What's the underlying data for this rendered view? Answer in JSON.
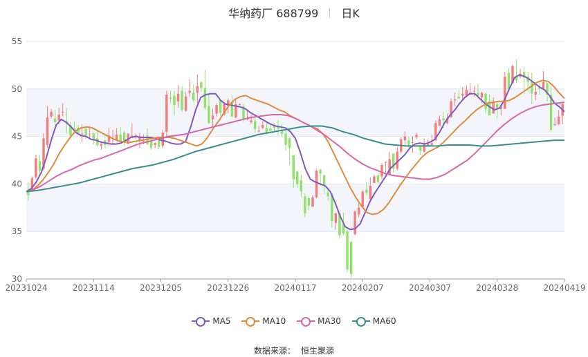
{
  "header": {
    "name": "华纳药厂 688799",
    "period": "日K"
  },
  "source": {
    "label": "数据来源：",
    "value": "恒生聚源"
  },
  "chart_data": {
    "type": "candlestick",
    "x_tick_labels": [
      "20231024",
      "20231114",
      "20231205",
      "20231226",
      "20240117",
      "20240207",
      "20240307",
      "20240328",
      "20240419"
    ],
    "ylim": [
      30,
      55
    ],
    "y_ticks": [
      30,
      35,
      40,
      45,
      50,
      55
    ],
    "grid": true,
    "legend_position": "bottom",
    "colors": {
      "up": "#f47c7c",
      "down": "#8fe36b",
      "MA5": "#7e57c2",
      "MA10": "#e08a3c",
      "MA30": "#d966a6",
      "MA60": "#3a8c8c"
    },
    "candles": [
      [
        39.3,
        38.8,
        40.2,
        38.2
      ],
      [
        39.4,
        40.6,
        40.8,
        39.2
      ],
      [
        40.7,
        42.7,
        43.1,
        40.5
      ],
      [
        42.4,
        41.4,
        43.0,
        40.8
      ],
      [
        41.6,
        44.8,
        45.3,
        41.4
      ],
      [
        44.1,
        47.0,
        48.2,
        43.8
      ],
      [
        47.1,
        47.6,
        47.9,
        46.9
      ],
      [
        46.9,
        46.5,
        47.8,
        46.2
      ],
      [
        46.7,
        47.3,
        48.0,
        46.3
      ],
      [
        47.6,
        47.6,
        48.5,
        47.1
      ],
      [
        46.6,
        46.4,
        48.0,
        45.3
      ],
      [
        46.2,
        45.1,
        46.5,
        44.9
      ],
      [
        45.9,
        45.6,
        46.6,
        45.3
      ],
      [
        45.9,
        45.4,
        46.2,
        45.2
      ],
      [
        45.3,
        45.3,
        46.3,
        44.4
      ],
      [
        45.8,
        45.1,
        45.9,
        44.7
      ],
      [
        45.2,
        45.2,
        46.1,
        44.7
      ],
      [
        45.3,
        44.6,
        45.4,
        44.2
      ],
      [
        44.8,
        44.1,
        45.6,
        43.9
      ],
      [
        44.0,
        44.2,
        44.5,
        43.6
      ],
      [
        44.6,
        44.1,
        45.3,
        43.8
      ],
      [
        44.4,
        45.1,
        45.9,
        44.0
      ],
      [
        44.2,
        44.3,
        45.7,
        44.3
      ],
      [
        44.6,
        45.2,
        45.9,
        44.5
      ],
      [
        45.2,
        44.5,
        46.0,
        44.4
      ],
      [
        45.4,
        44.4,
        45.6,
        44.0
      ],
      [
        44.2,
        45.3,
        45.3,
        44.2
      ],
      [
        45.0,
        45.1,
        46.4,
        45.0
      ],
      [
        45.0,
        45.1,
        45.3,
        44.7
      ],
      [
        44.5,
        44.9,
        45.4,
        43.8
      ],
      [
        44.5,
        44.5,
        45.2,
        44.2
      ],
      [
        45.1,
        44.2,
        45.9,
        44.1
      ],
      [
        44.6,
        43.8,
        44.7,
        43.6
      ],
      [
        44.1,
        44.3,
        44.4,
        43.8
      ],
      [
        44.6,
        43.9,
        44.6,
        43.7
      ],
      [
        44.0,
        45.4,
        45.7,
        43.8
      ],
      [
        45.5,
        49.4,
        49.8,
        44.9
      ],
      [
        49.1,
        49.0,
        49.8,
        48.5
      ],
      [
        49.3,
        48.3,
        49.8,
        47.2
      ],
      [
        48.7,
        49.5,
        50.4,
        48.0
      ],
      [
        49.8,
        47.8,
        50.3,
        47.6
      ],
      [
        47.7,
        49.2,
        49.7,
        47.6
      ],
      [
        49.6,
        49.8,
        51.0,
        49.2
      ],
      [
        49.6,
        48.8,
        50.5,
        48.6
      ],
      [
        49.6,
        50.3,
        51.5,
        48.5
      ],
      [
        50.7,
        50.1,
        50.8,
        49.7
      ],
      [
        50.1,
        48.0,
        52.0,
        47.8
      ],
      [
        48.2,
        46.4,
        49.6,
        46.3
      ],
      [
        46.8,
        47.2,
        47.9,
        46.0
      ],
      [
        47.4,
        48.3,
        48.5,
        47.1
      ],
      [
        48.8,
        47.5,
        48.9,
        47.2
      ],
      [
        47.3,
        48.4,
        48.5,
        47.2
      ],
      [
        48.2,
        48.8,
        49.0,
        47.4
      ],
      [
        48.6,
        47.1,
        49.3,
        47.1
      ],
      [
        47.0,
        48.4,
        48.9,
        46.9
      ],
      [
        48.3,
        48.4,
        48.5,
        48.3
      ],
      [
        48.2,
        46.8,
        48.4,
        46.5
      ],
      [
        46.8,
        46.9,
        47.7,
        46.7
      ],
      [
        46.5,
        46.7,
        47.3,
        46.3
      ],
      [
        46.6,
        45.8,
        47.0,
        45.4
      ],
      [
        45.6,
        45.6,
        46.1,
        45.4
      ],
      [
        45.9,
        46.2,
        46.6,
        45.8
      ],
      [
        45.9,
        45.3,
        46.5,
        45.2
      ],
      [
        45.8,
        45.6,
        46.2,
        45.5
      ],
      [
        46.1,
        45.9,
        46.4,
        45.6
      ],
      [
        46.0,
        45.8,
        46.7,
        45.1
      ],
      [
        45.7,
        45.3,
        46.3,
        45.0
      ],
      [
        45.3,
        44.1,
        45.5,
        43.5
      ],
      [
        44.8,
        43.8,
        44.9,
        42.0
      ],
      [
        43.0,
        40.5,
        43.1,
        39.6
      ],
      [
        41.3,
        40.0,
        41.4,
        39.6
      ],
      [
        40.4,
        39.2,
        41.0,
        38.6
      ],
      [
        38.7,
        36.9,
        39.0,
        36.5
      ],
      [
        38.5,
        37.7,
        38.6,
        37.2
      ],
      [
        37.6,
        38.6,
        38.8,
        37.6
      ],
      [
        38.6,
        41.4,
        41.6,
        38.5
      ],
      [
        41.5,
        41.1,
        41.6,
        39.8
      ],
      [
        40.9,
        39.9,
        41.0,
        38.9
      ],
      [
        39.1,
        38.7,
        39.4,
        38.2
      ],
      [
        39.0,
        36.1,
        39.0,
        35.4
      ],
      [
        35.9,
        36.9,
        37.0,
        35.2
      ],
      [
        36.9,
        34.6,
        36.9,
        34.3
      ],
      [
        35.8,
        34.8,
        37.0,
        34.6
      ],
      [
        35.0,
        31.0,
        35.1,
        30.7
      ],
      [
        33.9,
        30.5,
        34.0,
        30.1
      ],
      [
        34.7,
        37.1,
        37.2,
        34.6
      ],
      [
        36.8,
        37.5,
        38.1,
        36.5
      ],
      [
        37.6,
        39.2,
        39.3,
        37.4
      ],
      [
        39.4,
        39.1,
        40.2,
        38.8
      ],
      [
        38.4,
        39.8,
        40.7,
        38.3
      ],
      [
        40.1,
        40.8,
        41.0,
        40.1
      ],
      [
        40.9,
        40.2,
        41.1,
        40.0
      ],
      [
        40.8,
        42.0,
        42.2,
        40.5
      ],
      [
        42.3,
        42.3,
        42.4,
        41.1
      ],
      [
        41.0,
        42.6,
        43.4,
        40.9
      ],
      [
        43.2,
        41.6,
        43.2,
        41.2
      ],
      [
        41.6,
        43.4,
        43.9,
        41.4
      ],
      [
        43.4,
        44.7,
        44.9,
        43.2
      ],
      [
        44.6,
        45.0,
        45.5,
        43.9
      ],
      [
        44.6,
        44.1,
        45.0,
        43.8
      ],
      [
        44.4,
        44.4,
        45.0,
        43.3
      ],
      [
        44.9,
        45.2,
        45.4,
        44.7
      ],
      [
        44.0,
        43.5,
        44.1,
        43.1
      ],
      [
        43.4,
        44.3,
        44.8,
        43.3
      ],
      [
        44.0,
        44.2,
        44.7,
        44.0
      ],
      [
        44.1,
        44.3,
        45.2,
        44.1
      ],
      [
        44.6,
        46.4,
        46.7,
        44.5
      ],
      [
        46.1,
        46.8,
        47.2,
        46.1
      ],
      [
        46.9,
        46.7,
        47.6,
        45.9
      ],
      [
        46.4,
        46.9,
        47.4,
        46.3
      ],
      [
        47.0,
        48.7,
        49.0,
        47.0
      ],
      [
        48.8,
        48.9,
        49.6,
        48.2
      ],
      [
        49.2,
        49.0,
        49.9,
        49.0
      ],
      [
        49.3,
        49.5,
        50.2,
        48.9
      ],
      [
        49.3,
        49.9,
        50.4,
        49.2
      ],
      [
        49.4,
        49.6,
        50.6,
        49.4
      ],
      [
        49.8,
        49.8,
        50.3,
        49.2
      ],
      [
        49.6,
        49.3,
        50.5,
        49.0
      ],
      [
        49.1,
        49.6,
        49.7,
        48.5
      ],
      [
        49.5,
        47.9,
        49.6,
        47.4
      ],
      [
        48.7,
        47.2,
        49.4,
        47.2
      ],
      [
        47.4,
        48.6,
        49.1,
        47.4
      ],
      [
        48.4,
        48.0,
        48.7,
        46.9
      ],
      [
        47.9,
        48.1,
        48.2,
        47.2
      ],
      [
        47.9,
        51.3,
        51.8,
        47.9
      ],
      [
        51.7,
        50.0,
        52.2,
        49.9
      ],
      [
        50.6,
        52.4,
        52.6,
        50.6
      ],
      [
        51.4,
        50.9,
        53.1,
        50.6
      ],
      [
        51.3,
        51.6,
        52.1,
        51.1
      ],
      [
        51.8,
        51.2,
        52.3,
        49.5
      ],
      [
        51.3,
        50.7,
        51.8,
        49.7
      ],
      [
        50.8,
        49.5,
        51.7,
        48.4
      ],
      [
        49.4,
        49.7,
        50.7,
        48.8
      ],
      [
        50.2,
        50.0,
        50.7,
        49.4
      ],
      [
        50.0,
        50.7,
        51.9,
        50.0
      ],
      [
        50.6,
        49.4,
        50.8,
        48.7
      ],
      [
        49.4,
        45.7,
        50.3,
        45.5
      ],
      [
        46.2,
        46.3,
        47.0,
        46.1
      ],
      [
        46.3,
        47.1,
        47.8,
        46.2
      ],
      [
        47.2,
        48.4,
        48.6,
        46.3
      ]
    ],
    "series": [
      {
        "name": "MA5",
        "values": [
          39.2,
          39.5,
          40.2,
          41.2,
          42.7,
          44.6,
          46.2,
          46.8,
          46.5,
          46.0,
          45.4,
          45.1,
          45.0,
          44.7,
          44.6,
          44.4,
          44.3,
          44.2,
          44.2,
          44.3,
          44.6,
          44.9,
          45.0,
          44.9,
          44.9,
          44.9,
          44.8,
          44.6,
          44.5,
          44.3,
          44.2,
          44.2,
          44.5,
          46.0,
          47.8,
          49.1,
          49.4,
          49.5,
          49.5,
          48.8,
          48.4,
          48.3,
          48.2,
          48.1,
          47.9,
          47.5,
          47.2,
          46.9,
          46.6,
          46.3,
          46.1,
          46.0,
          45.9,
          45.5,
          44.8,
          43.3,
          41.6,
          40.5,
          40.2,
          40.0,
          39.8,
          39.2,
          38.0,
          36.6,
          35.5,
          35.2,
          35.3,
          35.8,
          37.0,
          38.2,
          39.1,
          39.9,
          40.7,
          41.6,
          42.1,
          42.6,
          43.1,
          43.8,
          44.2,
          44.3,
          44.2,
          44.4,
          44.7,
          45.5,
          46.5,
          47.2,
          47.8,
          48.5,
          49.1,
          49.5,
          49.5,
          49.0,
          48.5,
          48.1,
          47.8,
          48.0,
          48.9,
          50.1,
          51.2,
          51.5,
          51.3,
          51.0,
          50.6,
          50.2,
          49.9,
          49.3,
          48.5,
          48.1,
          47.6
        ]
      },
      {
        "name": "MA10",
        "values": [
          39.2,
          39.3,
          39.8,
          40.4,
          41.2,
          42.1,
          43.2,
          44.1,
          44.9,
          45.6,
          45.9,
          46.0,
          45.9,
          45.6,
          45.3,
          45.0,
          44.7,
          44.5,
          44.4,
          44.4,
          44.5,
          44.6,
          44.7,
          44.8,
          44.9,
          44.9,
          44.9,
          44.8,
          44.6,
          44.4,
          44.2,
          44.0,
          44.2,
          44.9,
          45.8,
          46.6,
          47.5,
          48.3,
          48.9,
          49.2,
          49.3,
          49.0,
          48.8,
          48.6,
          48.4,
          48.1,
          47.8,
          47.6,
          47.2,
          46.9,
          46.6,
          46.3,
          46.0,
          45.8,
          45.3,
          44.4,
          43.2,
          42.0,
          40.8,
          39.6,
          38.6,
          37.7,
          37.0,
          36.8,
          36.9,
          37.3,
          38.0,
          38.9,
          39.8,
          40.6,
          41.4,
          42.1,
          42.8,
          43.3,
          43.6,
          43.9,
          44.4,
          45.0,
          45.6,
          46.2,
          46.7,
          47.3,
          47.8,
          48.2,
          48.5,
          48.6,
          48.7,
          48.7,
          48.8,
          49.1,
          49.5,
          49.9,
          50.3,
          50.7,
          50.9,
          50.8,
          50.3,
          49.6,
          49.0
        ]
      },
      {
        "name": "MA30",
        "values": [
          39.2,
          39.4,
          39.8,
          40.3,
          40.8,
          41.2,
          41.5,
          41.9,
          42.2,
          42.5,
          42.7,
          43.0,
          43.3,
          43.6,
          43.9,
          44.2,
          44.4,
          44.6,
          44.8,
          45.0,
          45.1,
          45.2,
          45.4,
          45.6,
          45.8,
          46.0,
          46.2,
          46.4,
          46.6,
          46.8,
          47.0,
          47.1,
          47.2,
          47.3,
          47.3,
          47.2,
          46.9,
          46.5,
          46.1,
          45.6,
          45.1,
          44.5,
          43.9,
          43.2,
          42.6,
          42.1,
          41.7,
          41.4,
          41.1,
          40.9,
          40.8,
          40.7,
          40.6,
          40.5,
          40.5,
          40.7,
          41.0,
          41.5,
          42.0,
          42.5,
          43.2,
          44.0,
          44.8,
          45.6,
          46.3,
          46.9,
          47.4,
          47.8,
          48.1,
          48.3,
          48.4,
          48.5,
          48.6
        ]
      },
      {
        "name": "MA60",
        "values": [
          39.2,
          39.3,
          39.5,
          39.7,
          39.9,
          40.1,
          40.4,
          40.7,
          41.0,
          41.3,
          41.6,
          41.8,
          42.0,
          42.3,
          42.6,
          43.0,
          43.4,
          43.7,
          44.0,
          44.3,
          44.6,
          44.9,
          45.2,
          45.4,
          45.6,
          45.8,
          46.0,
          46.1,
          46.1,
          45.9,
          45.5,
          45.2,
          44.8,
          44.5,
          44.2,
          44.1,
          44.0,
          44.0,
          44.0,
          44.0,
          44.1,
          44.1,
          44.1,
          44.0,
          44.0,
          44.1,
          44.2,
          44.3,
          44.4,
          44.5,
          44.6,
          44.6
        ]
      }
    ]
  }
}
